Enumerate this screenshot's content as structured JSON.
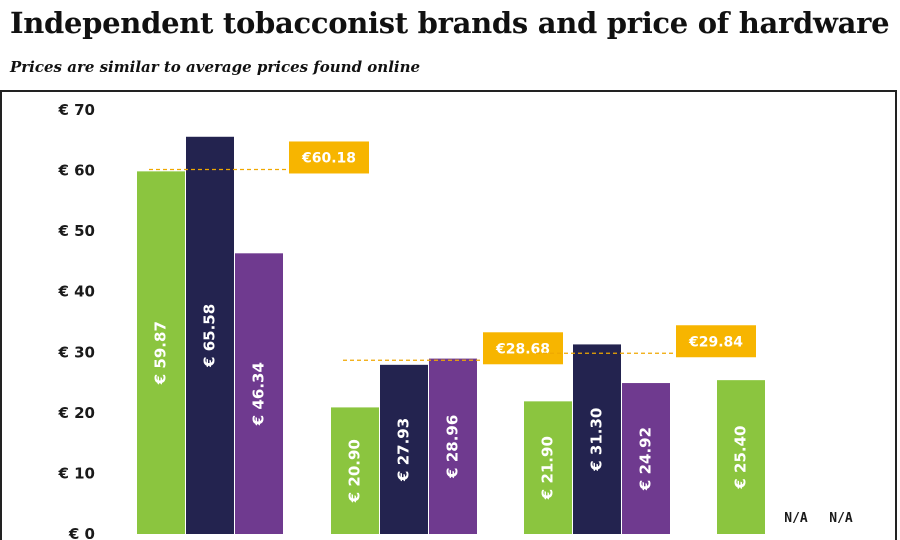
{
  "header": {
    "title": "Independent tobacconist brands and price of hardware",
    "subtitle": "Prices are similar to average prices found online"
  },
  "colors": {
    "green": "#8bc53f",
    "navy": "#23234f",
    "purple": "#6f3a8f",
    "avg": "#f7b500",
    "avg_line": "#f0a800"
  },
  "chart_data": {
    "type": "bar",
    "currency_prefix": "€",
    "ylim": [
      0,
      70
    ],
    "yticks": [
      0,
      10,
      20,
      30,
      40,
      50,
      60,
      70
    ],
    "ytick_labels": [
      "€ 0",
      "€ 10",
      "€ 20",
      "€ 30",
      "€ 40",
      "€ 50",
      "€ 60",
      "€ 70"
    ],
    "grid": false,
    "groups": [
      {
        "bars": [
          {
            "value": 59.87,
            "label": "€ 59.87",
            "color": "green"
          },
          {
            "value": 65.58,
            "label": "€ 65.58",
            "color": "navy"
          },
          {
            "value": 46.34,
            "label": "€ 46.34",
            "color": "purple"
          }
        ],
        "average": 60.18,
        "average_label": "€60.18"
      },
      {
        "bars": [
          {
            "value": 20.9,
            "label": "€ 20.90",
            "color": "green"
          },
          {
            "value": 27.93,
            "label": "€ 27.93",
            "color": "navy"
          },
          {
            "value": 28.96,
            "label": "€ 28.96",
            "color": "purple"
          }
        ],
        "average": 28.68,
        "average_label": "€28.68"
      },
      {
        "bars": [
          {
            "value": 21.9,
            "label": "€ 21.90",
            "color": "green"
          },
          {
            "value": 31.3,
            "label": "€ 31.30",
            "color": "navy"
          },
          {
            "value": 24.92,
            "label": "€ 24.92",
            "color": "purple"
          }
        ],
        "average": 29.84,
        "average_label": "€29.84"
      },
      {
        "bars": [
          {
            "value": 25.4,
            "label": "€ 25.40",
            "color": "green"
          },
          {
            "value": null,
            "label": "N/A",
            "color": "navy"
          },
          {
            "value": null,
            "label": "N/A",
            "color": "purple"
          }
        ],
        "average": null,
        "average_label": ""
      }
    ]
  }
}
